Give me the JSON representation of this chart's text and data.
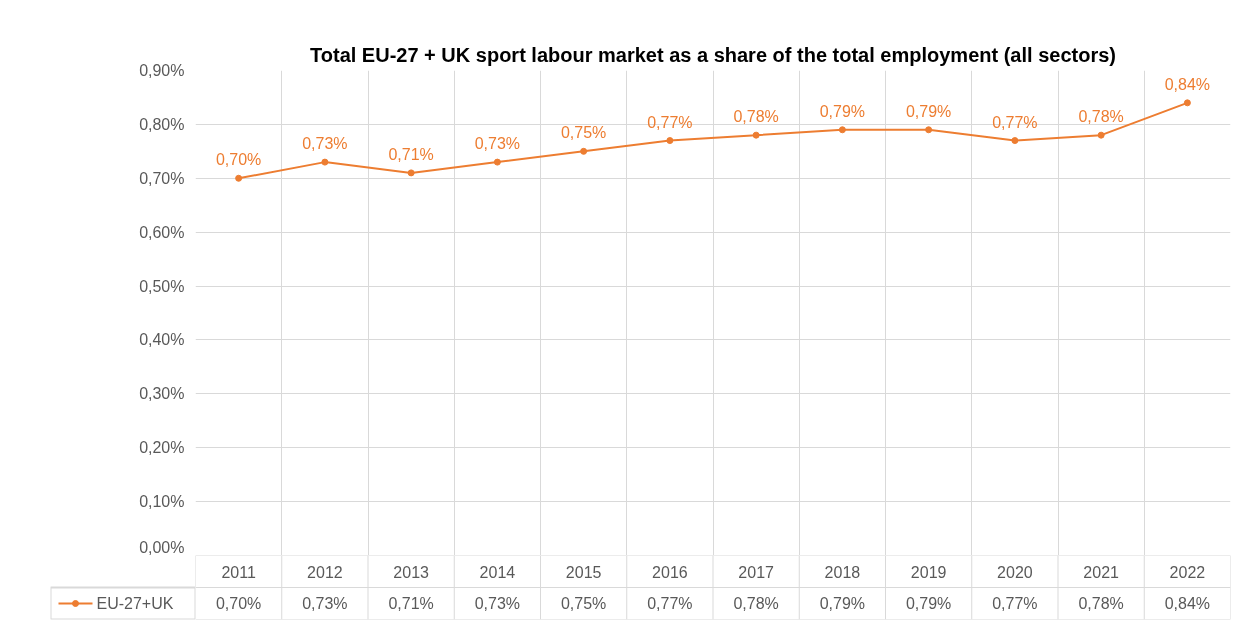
{
  "chart_data": {
    "type": "line",
    "title": "Total EU-27 + UK sport labour market as a share of the total employment (all sectors)",
    "categories": [
      "2011",
      "2012",
      "2013",
      "2014",
      "2015",
      "2016",
      "2017",
      "2018",
      "2019",
      "2020",
      "2021",
      "2022"
    ],
    "series": [
      {
        "name": "EU-27+UK",
        "color": "#ed7d31",
        "values": [
          0.7,
          0.73,
          0.71,
          0.73,
          0.75,
          0.77,
          0.78,
          0.79,
          0.79,
          0.77,
          0.78,
          0.84
        ],
        "value_labels": [
          "0,70%",
          "0,73%",
          "0,71%",
          "0,73%",
          "0,75%",
          "0,77%",
          "0,78%",
          "0,79%",
          "0,79%",
          "0,77%",
          "0,78%",
          "0,84%"
        ]
      }
    ],
    "ylim": [
      0,
      0.9
    ],
    "yticks": [
      {
        "value": 0,
        "label": "0,00%"
      },
      {
        "value": 0.1,
        "label": "0,10%"
      },
      {
        "value": 0.2,
        "label": "0,20%"
      },
      {
        "value": 0.3,
        "label": "0,30%"
      },
      {
        "value": 0.4,
        "label": "0,40%"
      },
      {
        "value": 0.5,
        "label": "0,50%"
      },
      {
        "value": 0.6,
        "label": "0,60%"
      },
      {
        "value": 0.7,
        "label": "0,70%"
      },
      {
        "value": 0.8,
        "label": "0,80%"
      },
      {
        "value": 0.9,
        "label": "0,90%"
      }
    ],
    "grid": true,
    "marker": "circle",
    "line_style": "solid",
    "legend": "bottom"
  }
}
